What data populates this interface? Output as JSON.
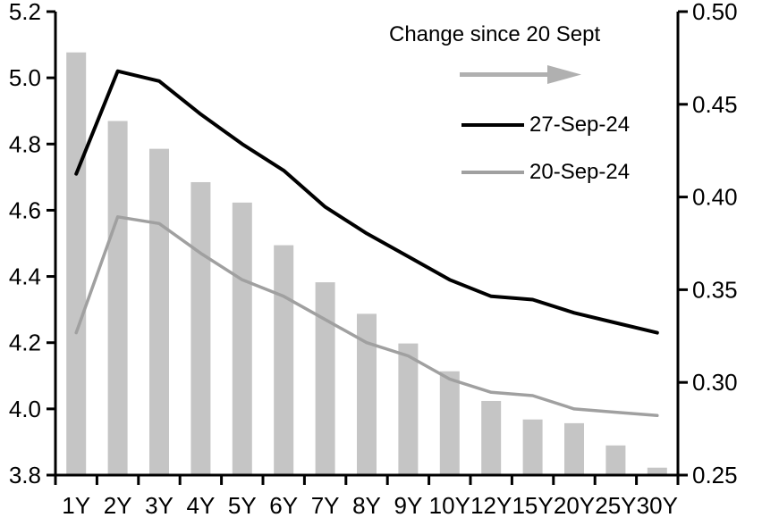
{
  "chart_data": {
    "type": "combo",
    "title": "",
    "categories": [
      "1Y",
      "2Y",
      "3Y",
      "4Y",
      "5Y",
      "6Y",
      "7Y",
      "8Y",
      "9Y",
      "10Y",
      "12Y",
      "15Y",
      "20Y",
      "25Y",
      "30Y"
    ],
    "series": [
      {
        "name": "Change since 20 Sept",
        "type": "bar",
        "axis": "right",
        "color": "#C5C5C5",
        "values": [
          0.478,
          0.441,
          0.426,
          0.408,
          0.397,
          0.374,
          0.354,
          0.337,
          0.321,
          0.306,
          0.29,
          0.28,
          0.278,
          0.266,
          0.254
        ]
      },
      {
        "name": "20-Sep-24",
        "type": "line",
        "axis": "left",
        "color": "#A0A0A0",
        "values": [
          4.23,
          4.58,
          4.56,
          4.47,
          4.39,
          4.34,
          4.27,
          4.2,
          4.16,
          4.09,
          4.05,
          4.04,
          4.0,
          3.99,
          3.98
        ]
      },
      {
        "name": "27-Sep-24",
        "type": "line",
        "axis": "left",
        "color": "#000000",
        "values": [
          4.71,
          5.02,
          4.99,
          4.89,
          4.8,
          4.72,
          4.61,
          4.53,
          4.46,
          4.39,
          4.34,
          4.33,
          4.29,
          4.26,
          4.23
        ]
      }
    ],
    "left_axis": {
      "min": 3.8,
      "max": 5.2,
      "step": 0.2,
      "tick_labels": [
        "5.2",
        "5.0",
        "4.8",
        "4.6",
        "4.4",
        "4.2",
        "4.0",
        "3.8"
      ]
    },
    "right_axis": {
      "min": 0.25,
      "max": 0.5,
      "step": 0.05,
      "tick_labels": [
        "0.50",
        "0.45",
        "0.40",
        "0.35",
        "0.30",
        "0.25"
      ]
    },
    "x_axis": {
      "tick_labels": [
        "1Y",
        "2Y",
        "3Y",
        "4Y",
        "5Y",
        "6Y",
        "7Y",
        "8Y",
        "9Y",
        "10Y",
        "12Y",
        "15Y",
        "20Y",
        "25Y",
        "30Y"
      ]
    },
    "legend": {
      "title": "Change since 20 Sept",
      "arrow_icon": "right-arrow",
      "arrow_color": "#B0B0B0",
      "entries": [
        {
          "label": "27-Sep-24",
          "color": "#000000"
        },
        {
          "label": "20-Sep-24",
          "color": "#A0A0A0"
        }
      ]
    },
    "grid": false,
    "background": "#FFFFFF",
    "axis_color": "#000000"
  }
}
